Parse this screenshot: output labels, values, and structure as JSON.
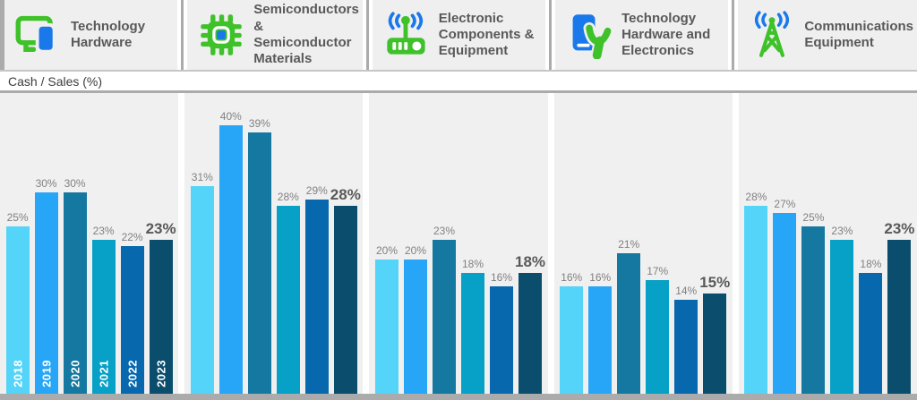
{
  "title_bar": {
    "label": "Cash / Sales (%)"
  },
  "tabs": [
    {
      "label": "Technology\nHardware",
      "icon": "monitor-phone-icon"
    },
    {
      "label": "Semiconductors\n& Semiconductor\nMaterials",
      "icon": "semiconductor-chip-icon"
    },
    {
      "label": "Electronic\nComponents &\nEquipment",
      "icon": "router-antenna-icon"
    },
    {
      "label": "Technology\nHardware and\nElectronics",
      "icon": "phone-hand-icon"
    },
    {
      "label": "Communications\nEquipment",
      "icon": "signal-tower-icon"
    }
  ],
  "colors": {
    "icon_green": "#3FC12A",
    "icon_blue": "#1A79EA",
    "panel_bg": "#F0F0F0",
    "card_bg": "#EFEFEF",
    "border_gray": "#ABABAB",
    "label_gray": "#818181",
    "text_dark": "#595959"
  },
  "chart_data": {
    "type": "bar",
    "title": "Cash / Sales (%)",
    "unit": "%",
    "years": [
      "2018",
      "2019",
      "2020",
      "2021",
      "2022",
      "2023"
    ],
    "highlight_year": "2023",
    "year_labels_shown_on_first_group_only": true,
    "value_labels": "above each bar",
    "legend": "none",
    "bar_colors": [
      "#54D4F8",
      "#27A6F8",
      "#1478A1",
      "#07A0C6",
      "#0768AE",
      "#0A4D6C"
    ],
    "groups": [
      {
        "category": "Technology Hardware",
        "values": [
          25,
          30,
          30,
          23,
          22,
          23
        ]
      },
      {
        "category": "Semiconductors & Semiconductor Materials",
        "values": [
          31,
          40,
          39,
          28,
          29,
          28
        ]
      },
      {
        "category": "Electronic Components & Equipment",
        "values": [
          20,
          20,
          23,
          18,
          16,
          18
        ]
      },
      {
        "category": "Technology Hardware and Electronics",
        "values": [
          16,
          16,
          21,
          17,
          14,
          15
        ]
      },
      {
        "category": "Communications Equipment",
        "values": [
          28,
          27,
          25,
          23,
          18,
          23
        ]
      }
    ]
  }
}
